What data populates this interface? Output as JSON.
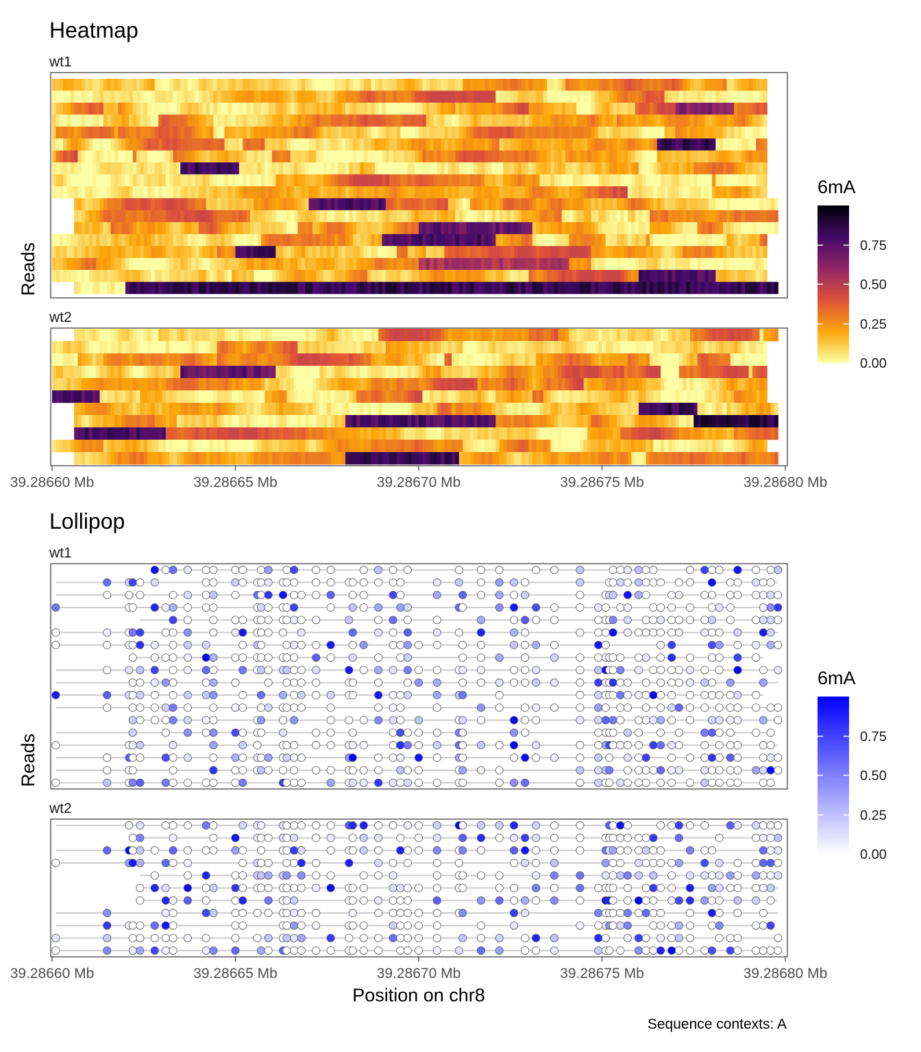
{
  "caption": "Sequence contexts: A",
  "colors": {
    "heatmap_scale": [
      "#FCFFA4",
      "#FCA50A",
      "#DD513A",
      "#932667",
      "#420A68",
      "#000004"
    ],
    "lollipop_low": "#FFFFFF",
    "lollipop_high": "#0000FF",
    "lollipop_line": "#CCCCCC"
  },
  "chart_data": [
    {
      "type": "heatmap",
      "title": "Heatmap",
      "ylabel": "Reads",
      "xlabel": "",
      "x_ticks": [
        "39.28660 Mb",
        "39.28665 Mb",
        "39.28670 Mb",
        "39.28675 Mb",
        "39.28680 Mb"
      ],
      "x_tick_values": [
        39286600,
        39286650,
        39286700,
        39286750,
        39286800
      ],
      "xlim": [
        39286600,
        39286800
      ],
      "legend": {
        "title": "6mA",
        "ticks": [
          "0.00",
          "0.25",
          "0.50",
          "0.75"
        ],
        "range": [
          0,
          1
        ],
        "position": "right"
      },
      "panels": [
        {
          "name": "wt1",
          "reads": 18,
          "read_ranges": [
            [
              39286600,
              39286795
            ],
            [
              39286600,
              39286795
            ],
            [
              39286600,
              39286795
            ],
            [
              39286600,
              39286795
            ],
            [
              39286600,
              39286795
            ],
            [
              39286600,
              39286795
            ],
            [
              39286600,
              39286795
            ],
            [
              39286600,
              39286795
            ],
            [
              39286600,
              39286795
            ],
            [
              39286600,
              39286795
            ],
            [
              39286606,
              39286798
            ],
            [
              39286606,
              39286798
            ],
            [
              39286606,
              39286798
            ],
            [
              39286600,
              39286795
            ],
            [
              39286600,
              39286795
            ],
            [
              39286600,
              39286795
            ],
            [
              39286600,
              39286795
            ],
            [
              39286606,
              39286798
            ]
          ],
          "hotspots": [
            [
              17,
              39286620,
              39286800,
              0.92
            ],
            [
              16,
              39286760,
              39286780,
              0.85
            ],
            [
              15,
              39286700,
              39286740,
              0.6
            ],
            [
              14,
              39286650,
              39286660,
              0.9
            ],
            [
              13,
              39286690,
              39286720,
              0.85
            ],
            [
              12,
              39286700,
              39286730,
              0.8
            ],
            [
              10,
              39286670,
              39286690,
              0.85
            ],
            [
              7,
              39286635,
              39286650,
              0.9
            ],
            [
              5,
              39286765,
              39286780,
              0.9
            ],
            [
              2,
              39286770,
              39286785,
              0.7
            ]
          ]
        },
        {
          "name": "wt2",
          "reads": 11,
          "read_ranges": [
            [
              39286606,
              39286798
            ],
            [
              39286600,
              39286795
            ],
            [
              39286600,
              39286795
            ],
            [
              39286600,
              39286795
            ],
            [
              39286600,
              39286795
            ],
            [
              39286600,
              39286795
            ],
            [
              39286606,
              39286798
            ],
            [
              39286606,
              39286798
            ],
            [
              39286606,
              39286798
            ],
            [
              39286600,
              39286795
            ],
            [
              39286606,
              39286798
            ]
          ],
          "hotspots": [
            [
              10,
              39286680,
              39286710,
              0.9
            ],
            [
              8,
              39286605,
              39286630,
              0.85
            ],
            [
              7,
              39286680,
              39286720,
              0.85
            ],
            [
              7,
              39286775,
              39286798,
              0.95
            ],
            [
              6,
              39286760,
              39286775,
              0.9
            ],
            [
              3,
              39286635,
              39286660,
              0.8
            ],
            [
              5,
              39286600,
              39286612,
              0.85
            ]
          ]
        }
      ]
    },
    {
      "type": "scatter",
      "title": "Lollipop",
      "ylabel": "Reads",
      "xlabel": "Position on chr8",
      "x_ticks": [
        "39.28660 Mb",
        "39.28665 Mb",
        "39.28670 Mb",
        "39.28675 Mb",
        "39.28680 Mb"
      ],
      "x_tick_values": [
        39286600,
        39286650,
        39286700,
        39286750,
        39286800
      ],
      "xlim": [
        39286600,
        39286800
      ],
      "legend": {
        "title": "6mA",
        "ticks": [
          "0.00",
          "0.25",
          "0.50",
          "0.75"
        ],
        "range": [
          0,
          1
        ],
        "position": "right"
      },
      "sites": [
        39286601,
        39286615,
        39286621,
        39286622,
        39286624,
        39286628,
        39286631,
        39286633,
        39286637,
        39286642,
        39286644,
        39286650,
        39286652,
        39286656,
        39286657,
        39286659,
        39286663,
        39286664,
        39286666,
        39286668,
        39286672,
        39286676,
        39286681,
        39286682,
        39286685,
        39286689,
        39286693,
        39286695,
        39286697,
        39286700,
        39286705,
        39286711,
        39286712,
        39286717,
        39286722,
        39286726,
        39286729,
        39286732,
        39286737,
        39286744,
        39286749,
        39286751,
        39286752,
        39286753,
        39286755,
        39286757,
        39286760,
        39286762,
        39286764,
        39286766,
        39286769,
        39286771,
        39286774,
        39286778,
        39286780,
        39286782,
        39286785,
        39286787,
        39286792,
        39286794,
        39286796,
        39286798
      ],
      "panels": [
        {
          "name": "wt1",
          "reads": 18
        },
        {
          "name": "wt2",
          "reads": 11
        }
      ]
    }
  ]
}
